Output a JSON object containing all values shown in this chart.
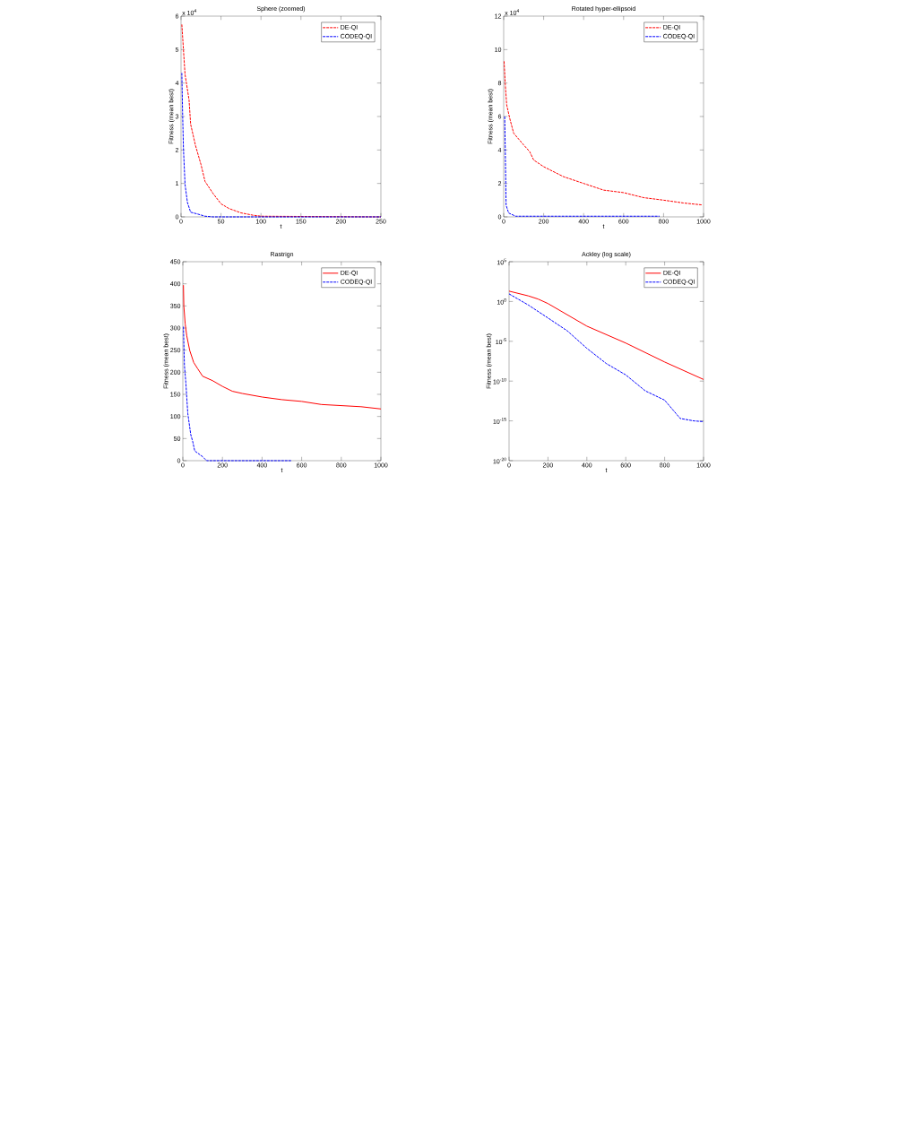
{
  "chart_data": [
    {
      "type": "line",
      "title": "Sphere (zoomed)",
      "xlabel": "t",
      "ylabel": "Fitness (mean best)",
      "annotations": [
        "x 10$^{4}$"
      ],
      "xlim": [
        0,
        250
      ],
      "ylim": [
        0,
        6
      ],
      "xticks": [
        0,
        50,
        100,
        150,
        200,
        250
      ],
      "yticks": [
        0,
        1,
        2,
        3,
        4,
        5,
        6
      ],
      "legend": "top right",
      "series": [
        {
          "name": "DE-QI",
          "color": "#ff0000",
          "line_style": "dashed",
          "x": [
            1,
            3,
            5,
            10,
            12,
            18,
            25,
            30,
            40,
            50,
            60,
            75,
            90,
            100,
            250
          ],
          "values": [
            5.75,
            5.0,
            4.26,
            3.5,
            2.77,
            2.14,
            1.56,
            1.06,
            0.7,
            0.39,
            0.25,
            0.12,
            0.05,
            0.02,
            0
          ]
        },
        {
          "name": "CODEQ-QI",
          "color": "#0000ff",
          "line_style": "dashed",
          "x": [
            1,
            2,
            3,
            5,
            8,
            12,
            20,
            30,
            40,
            250
          ],
          "values": [
            4.3,
            3.05,
            2.05,
            0.97,
            0.43,
            0.14,
            0.09,
            0.02,
            0,
            0
          ]
        }
      ]
    },
    {
      "type": "line",
      "title": "Rotated hyper-ellipsoid",
      "xlabel": "t",
      "ylabel": "Fitness (mean best)",
      "annotations": [
        "x 10$^{4}$"
      ],
      "xlim": [
        0,
        1000
      ],
      "ylim": [
        0,
        12
      ],
      "xticks": [
        0,
        200,
        400,
        600,
        800,
        1000
      ],
      "yticks": [
        0,
        2,
        4,
        6,
        8,
        10,
        12
      ],
      "legend": "top right",
      "series": [
        {
          "name": "DE-QI",
          "color": "#ff0000",
          "line_style": "dashed",
          "x": [
            2,
            8,
            15,
            30,
            50,
            75,
            100,
            130,
            150,
            200,
            300,
            400,
            500,
            600,
            700,
            800,
            900,
            990
          ],
          "values": [
            9.3,
            7.9,
            6.7,
            5.9,
            5.0,
            4.65,
            4.3,
            3.9,
            3.4,
            3.0,
            2.4,
            2.0,
            1.6,
            1.45,
            1.15,
            1.0,
            0.83,
            0.72
          ]
        },
        {
          "name": "CODEQ-QI",
          "color": "#0000ff",
          "line_style": "dashed",
          "x": [
            5,
            8,
            12,
            25,
            60,
            780
          ],
          "values": [
            6.0,
            3.9,
            0.7,
            0.23,
            0.04,
            0.04
          ]
        }
      ]
    },
    {
      "type": "line",
      "title": "Rastrign",
      "xlabel": "t",
      "ylabel": "Fitness (mean best)",
      "xlim": [
        0,
        1000
      ],
      "ylim": [
        0,
        450
      ],
      "xticks": [
        0,
        200,
        400,
        600,
        800,
        1000
      ],
      "yticks": [
        0,
        50,
        100,
        150,
        200,
        250,
        300,
        350,
        400,
        450
      ],
      "legend": "top right",
      "series": [
        {
          "name": "DE-QI",
          "color": "#ff0000",
          "line_style": "solid",
          "x": [
            3,
            5,
            12,
            20,
            35,
            55,
            75,
            100,
            150,
            200,
            250,
            300,
            400,
            500,
            600,
            700,
            900,
            1000
          ],
          "values": [
            397,
            350,
            309,
            282,
            249,
            222,
            208,
            191,
            181,
            168,
            157,
            152,
            144,
            138,
            134,
            127,
            122,
            117
          ]
        },
        {
          "name": "CODEQ-QI",
          "color": "#0000ff",
          "line_style": "dashed",
          "x": [
            3,
            8,
            15,
            25,
            40,
            50,
            60,
            100,
            120,
            550
          ],
          "values": [
            303,
            215,
            178,
            107,
            59,
            43,
            22,
            9,
            0,
            0
          ]
        }
      ]
    },
    {
      "type": "line",
      "title": "Ackley (log scale)",
      "xlabel": "t",
      "ylabel": "Fitness (mean best)",
      "log": "y",
      "xlim": [
        0,
        1000
      ],
      "ylim": [
        1e-20,
        100000.0
      ],
      "xticks": [
        0,
        200,
        400,
        600,
        800,
        1000
      ],
      "yticks": [
        {
          "value": 1e-20,
          "label": "10$^{-20}$"
        },
        {
          "value": 1e-15,
          "label": "10$^{-15}$"
        },
        {
          "value": 1e-10,
          "label": "10$^{-10}$"
        },
        {
          "value": 1e-05,
          "label": "10$^{-5}$"
        },
        {
          "value": 1,
          "label": "10$^{0}$"
        },
        {
          "value": 100000.0,
          "label": "10$^{5}$"
        }
      ],
      "legend": "top right",
      "series": [
        {
          "name": "DE-QI",
          "color": "#ff0000",
          "line_style": "solid",
          "x": [
            0,
            100,
            150,
            200,
            400,
            600,
            800,
            1000
          ],
          "values": [
            20,
            5,
            2,
            0.55,
            0.0008,
            6e-06,
            2.5e-08,
            1.6e-10
          ]
        },
        {
          "name": "CODEQ-QI",
          "color": "#0000ff",
          "line_style": "dashed",
          "x": [
            0,
            100,
            200,
            300,
            400,
            500,
            600,
            700,
            800,
            880,
            950,
            1000
          ],
          "values": [
            9,
            0.35,
            0.0085,
            0.0002,
            1.3e-06,
            1.6e-08,
            6e-10,
            6e-12,
            4e-13,
            2e-15,
            1e-15,
            8e-16
          ]
        }
      ]
    }
  ]
}
